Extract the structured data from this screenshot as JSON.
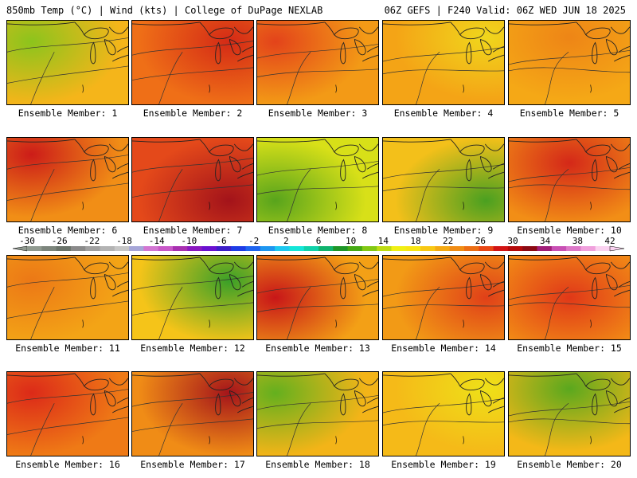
{
  "header": {
    "left": "850mb Temp (°C) | Wind (kts) | College of DuPage NEXLAB",
    "right": "06Z GEFS | F240 Valid: 06Z WED JUN 18 2025"
  },
  "colorbar": {
    "tick_labels": [
      "-30",
      "-26",
      "-22",
      "-18",
      "-14",
      "-10",
      "-6",
      "-2",
      "2",
      "6",
      "10",
      "14",
      "18",
      "22",
      "26",
      "30",
      "34",
      "38",
      "42"
    ],
    "colors": [
      "#909a90",
      "#7c857c",
      "#6a736a",
      "#8a8a8a",
      "#a0a0a0",
      "#b3b3b3",
      "#c6c6c6",
      "#a6a6d8",
      "#d276d2",
      "#c858c8",
      "#a830b0",
      "#8a18c0",
      "#6a10d0",
      "#3c1ec8",
      "#1e3ce6",
      "#1e64f0",
      "#1e96f0",
      "#1ec8f0",
      "#14e6d8",
      "#10d2aa",
      "#10b46e",
      "#1e9628",
      "#46aa14",
      "#82c814",
      "#bedc14",
      "#f0f014",
      "#f8e614",
      "#f8c814",
      "#f4aa14",
      "#f08c14",
      "#ec6e14",
      "#e84614",
      "#d21414",
      "#b40a0a",
      "#8c0a14",
      "#a01e78",
      "#c850b4",
      "#dc78c8",
      "#f0a0dc",
      "#fad2f0"
    ]
  },
  "panels": [
    {
      "label": "Ensemble Member: 1",
      "base": "#f5b51a",
      "tint": "#8cc41c"
    },
    {
      "label": "Ensemble Member: 2",
      "base": "#ef6f17",
      "tint": "#d42a16"
    },
    {
      "label": "Ensemble Member: 3",
      "base": "#f39a16",
      "tint": "#e3431a"
    },
    {
      "label": "Ensemble Member: 4",
      "base": "#f4a416",
      "tint": "#f0d61c"
    },
    {
      "label": "Ensemble Member: 5",
      "base": "#f5a816",
      "tint": "#ee8516"
    },
    {
      "label": "Ensemble Member: 6",
      "base": "#f18e16",
      "tint": "#cc1c18"
    },
    {
      "label": "Ensemble Member: 7",
      "base": "#e4491a",
      "tint": "#a3131a"
    },
    {
      "label": "Ensemble Member: 8",
      "base": "#d8e018",
      "tint": "#58a41c"
    },
    {
      "label": "Ensemble Member: 9",
      "base": "#f3c01a",
      "tint": "#4aa020"
    },
    {
      "label": "Ensemble Member: 10",
      "base": "#f28e16",
      "tint": "#d42818"
    },
    {
      "label": "Ensemble Member: 11",
      "base": "#f3a416",
      "tint": "#ec7816"
    },
    {
      "label": "Ensemble Member: 12",
      "base": "#f5c419",
      "tint": "#3aa028"
    },
    {
      "label": "Ensemble Member: 13",
      "base": "#f3a016",
      "tint": "#c81618"
    },
    {
      "label": "Ensemble Member: 14",
      "base": "#f29a16",
      "tint": "#e04018"
    },
    {
      "label": "Ensemble Member: 15",
      "base": "#f39016",
      "tint": "#e03818"
    },
    {
      "label": "Ensemble Member: 16",
      "base": "#ef7a16",
      "tint": "#dc2a18"
    },
    {
      "label": "Ensemble Member: 17",
      "base": "#f08c16",
      "tint": "#a4141a"
    },
    {
      "label": "Ensemble Member: 18",
      "base": "#f3b418",
      "tint": "#64b01e"
    },
    {
      "label": "Ensemble Member: 19",
      "base": "#f5ba18",
      "tint": "#eee018"
    },
    {
      "label": "Ensemble Member: 20",
      "base": "#f4b818",
      "tint": "#5aa81e"
    }
  ]
}
